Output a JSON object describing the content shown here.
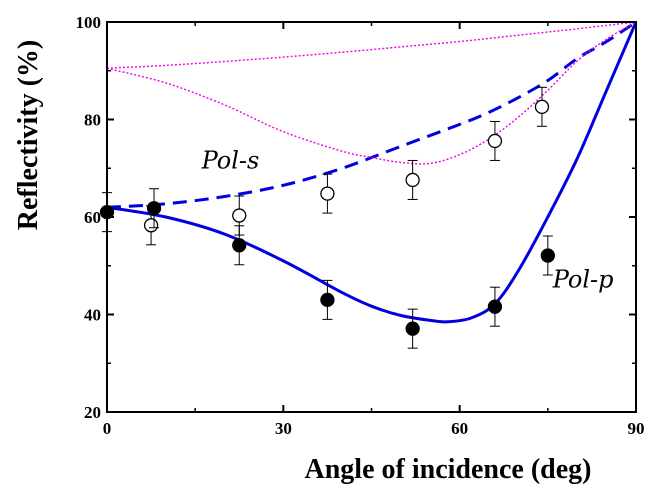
{
  "chart_data": {
    "type": "scatter",
    "xlabel": "Angle of incidence (deg)",
    "ylabel": "Reflectivity (%)",
    "xlim": [
      0,
      90
    ],
    "ylim": [
      20,
      100
    ],
    "xticks": [
      0,
      30,
      60,
      90
    ],
    "yticks": [
      20,
      40,
      60,
      80,
      100
    ],
    "grid": false,
    "annotations": [
      {
        "text": "Pol-s",
        "x": 21,
        "y": 70
      },
      {
        "text": "Pol-p",
        "x": 81,
        "y": 45.5
      }
    ],
    "series": [
      {
        "kind": "points",
        "marker": "open-circle",
        "color": "#000000",
        "x": [
          7.5,
          22.5,
          37.5,
          52,
          66,
          74
        ],
        "y": [
          58.3,
          60.3,
          64.8,
          67.6,
          75.6,
          82.6
        ],
        "err": [
          4,
          4,
          4,
          4,
          4,
          4
        ]
      },
      {
        "kind": "points",
        "marker": "filled-circle",
        "color": "#000000",
        "x": [
          0,
          8,
          22.5,
          37.5,
          52,
          66,
          75
        ],
        "y": [
          61,
          61.8,
          54.2,
          43,
          37.1,
          41.6,
          52.1
        ],
        "err": [
          4,
          4,
          4,
          4,
          4,
          4,
          4
        ]
      },
      {
        "kind": "curve",
        "style": "dashed",
        "color": "#0000e0",
        "x": [
          0,
          10,
          20,
          30,
          40,
          50,
          60,
          65,
          70,
          75,
          80,
          85,
          90
        ],
        "y": [
          62,
          62.7,
          64.2,
          66.5,
          70,
          74.5,
          79,
          81.5,
          84.5,
          88,
          92.5,
          96,
          100
        ]
      },
      {
        "kind": "curve",
        "style": "solid",
        "color": "#0000e0",
        "x": [
          0,
          10,
          20,
          30,
          40,
          45,
          50,
          55,
          58,
          62,
          66,
          70,
          75,
          80,
          85,
          90
        ],
        "y": [
          62,
          60,
          56.5,
          51,
          44.5,
          41.7,
          39.8,
          38.8,
          38.5,
          39.3,
          42.2,
          49,
          60,
          72,
          86,
          100
        ]
      },
      {
        "kind": "curve",
        "style": "dotted",
        "color": "#ee00ee",
        "x": [
          0,
          10,
          20,
          30,
          40,
          45,
          50,
          55,
          60,
          65,
          70,
          75,
          80,
          85,
          90
        ],
        "y": [
          90.5,
          87.5,
          83,
          77.5,
          73.5,
          72.2,
          71.2,
          71,
          72.8,
          76,
          80.5,
          86,
          92,
          96.5,
          100
        ]
      },
      {
        "kind": "curve",
        "style": "dotted",
        "color": "#ee00ee",
        "x": [
          0,
          10,
          20,
          30,
          40,
          50,
          60,
          70,
          80,
          90
        ],
        "y": [
          90.5,
          91.1,
          91.9,
          92.8,
          93.8,
          94.9,
          96,
          97.3,
          98.6,
          100
        ]
      }
    ]
  }
}
